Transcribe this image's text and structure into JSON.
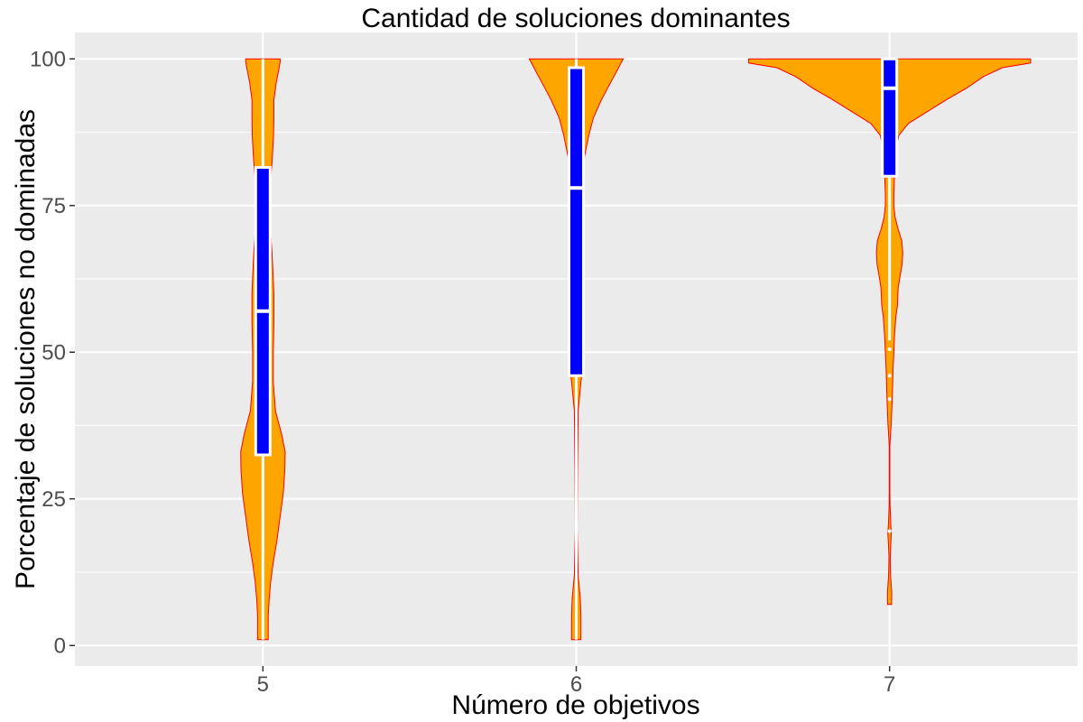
{
  "chart_data": {
    "type": "violin",
    "title": "Cantidad de soluciones dominantes",
    "xlabel": "Número de objetivos",
    "ylabel": "Porcentaje de soluciones no dominadas",
    "categories": [
      "5",
      "6",
      "7"
    ],
    "ylim": [
      -3.5,
      104.5
    ],
    "yticks": [
      0,
      25,
      50,
      75,
      100
    ],
    "grid": true,
    "legend": "none",
    "colors": {
      "panel": "#ebebeb",
      "grid": "#ffffff",
      "violin_fill": "#ffa500",
      "violin_outline": "#ff0000",
      "box_fill": "#0000ff",
      "box_outline": "#ffffff"
    },
    "violins": [
      {
        "category": "5",
        "profile": [
          [
            1,
            0.034
          ],
          [
            5,
            0.034
          ],
          [
            8,
            0.04
          ],
          [
            11,
            0.05
          ],
          [
            14,
            0.065
          ],
          [
            18,
            0.09
          ],
          [
            22,
            0.11
          ],
          [
            26,
            0.13
          ],
          [
            30,
            0.14
          ],
          [
            33,
            0.142
          ],
          [
            36,
            0.12
          ],
          [
            40,
            0.08
          ],
          [
            45,
            0.066
          ],
          [
            50,
            0.066
          ],
          [
            55,
            0.07
          ],
          [
            60,
            0.07
          ],
          [
            63,
            0.065
          ],
          [
            67,
            0.058
          ],
          [
            70,
            0.05
          ],
          [
            73,
            0.042
          ],
          [
            76,
            0.04
          ],
          [
            79,
            0.048
          ],
          [
            83,
            0.06
          ],
          [
            87,
            0.068
          ],
          [
            90,
            0.07
          ],
          [
            93,
            0.07
          ],
          [
            96,
            0.085
          ],
          [
            98,
            0.1
          ],
          [
            99.5,
            0.11
          ],
          [
            100,
            0.11
          ]
        ]
      },
      {
        "category": "6",
        "profile": [
          [
            1,
            0.03
          ],
          [
            5,
            0.03
          ],
          [
            8,
            0.026
          ],
          [
            12,
            0.012
          ],
          [
            20,
            0.006
          ],
          [
            30,
            0.008
          ],
          [
            40,
            0.012
          ],
          [
            45,
            0.03
          ],
          [
            48,
            0.045
          ],
          [
            52,
            0.05
          ],
          [
            56,
            0.045
          ],
          [
            60,
            0.032
          ],
          [
            66,
            0.026
          ],
          [
            72,
            0.03
          ],
          [
            78,
            0.036
          ],
          [
            83,
            0.05
          ],
          [
            87,
            0.08
          ],
          [
            90,
            0.11
          ],
          [
            93,
            0.16
          ],
          [
            95,
            0.2
          ],
          [
            97,
            0.24
          ],
          [
            98.5,
            0.27
          ],
          [
            99.5,
            0.29
          ],
          [
            100,
            0.3
          ]
        ]
      },
      {
        "category": "7",
        "profile": [
          [
            7,
            0.013
          ],
          [
            9,
            0.014
          ],
          [
            12,
            0.006
          ],
          [
            15,
            0.004
          ],
          [
            17,
            0.007
          ],
          [
            19,
            0.011
          ],
          [
            21,
            0.007
          ],
          [
            24,
            0.003
          ],
          [
            26,
            0.002
          ],
          [
            30,
            0.002
          ],
          [
            34,
            0.002
          ],
          [
            36,
            0.006
          ],
          [
            38,
            0.011
          ],
          [
            41,
            0.015
          ],
          [
            44,
            0.019
          ],
          [
            47,
            0.022
          ],
          [
            50,
            0.027
          ],
          [
            53,
            0.032
          ],
          [
            56,
            0.04
          ],
          [
            58,
            0.05
          ],
          [
            61,
            0.055
          ],
          [
            63,
            0.067
          ],
          [
            65,
            0.08
          ],
          [
            67,
            0.084
          ],
          [
            69,
            0.078
          ],
          [
            71,
            0.054
          ],
          [
            73,
            0.035
          ],
          [
            75,
            0.027
          ],
          [
            77,
            0.027
          ],
          [
            79,
            0.03
          ],
          [
            81,
            0.033
          ],
          [
            83,
            0.036
          ],
          [
            85,
            0.043
          ],
          [
            87,
            0.06
          ],
          [
            89,
            0.12
          ],
          [
            91,
            0.24
          ],
          [
            93,
            0.36
          ],
          [
            95,
            0.49
          ],
          [
            97,
            0.6
          ],
          [
            98.5,
            0.72
          ],
          [
            99.3,
            0.9
          ],
          [
            100,
            0.9
          ]
        ]
      }
    ],
    "boxes": [
      {
        "category": "5",
        "min": 1,
        "q1": 32.5,
        "median": 57,
        "q3": 81.5,
        "max": 100,
        "outliers": []
      },
      {
        "category": "6",
        "min": 1,
        "q1": 46,
        "median": 78,
        "q3": 98.5,
        "max": 100,
        "outliers": []
      },
      {
        "category": "7",
        "min": 52,
        "q1": 80,
        "median": 95,
        "q3": 100,
        "max": 100,
        "outliers": [
          50.5,
          46,
          42,
          19.5
        ]
      }
    ]
  }
}
